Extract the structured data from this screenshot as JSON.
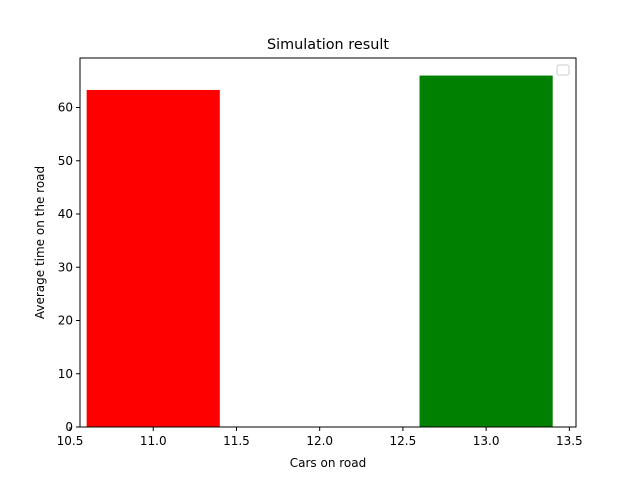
{
  "chart_data": {
    "type": "bar",
    "title": "Simulation result",
    "xlabel": "Cars on road",
    "ylabel": "Average time on the road",
    "xlim": [
      10.56,
      13.54
    ],
    "ylim": [
      0,
      69.3
    ],
    "xticks": [
      "10.5",
      "11.0",
      "11.5",
      "12.0",
      "12.5",
      "13.0",
      "13.5"
    ],
    "xtick_values": [
      10.5,
      11.0,
      11.5,
      12.0,
      12.5,
      13.0,
      13.5
    ],
    "yticks": [
      "0",
      "10",
      "20",
      "30",
      "40",
      "50",
      "60"
    ],
    "ytick_values": [
      0,
      10,
      20,
      30,
      40,
      50,
      60
    ],
    "bars": [
      {
        "x": 11,
        "width": 0.8,
        "value": 63.3,
        "color": "#ff0000"
      },
      {
        "x": 13,
        "width": 0.8,
        "value": 66.0,
        "color": "#008000"
      }
    ],
    "legend": {
      "placement": "top-right",
      "entries": []
    },
    "grid": false
  }
}
